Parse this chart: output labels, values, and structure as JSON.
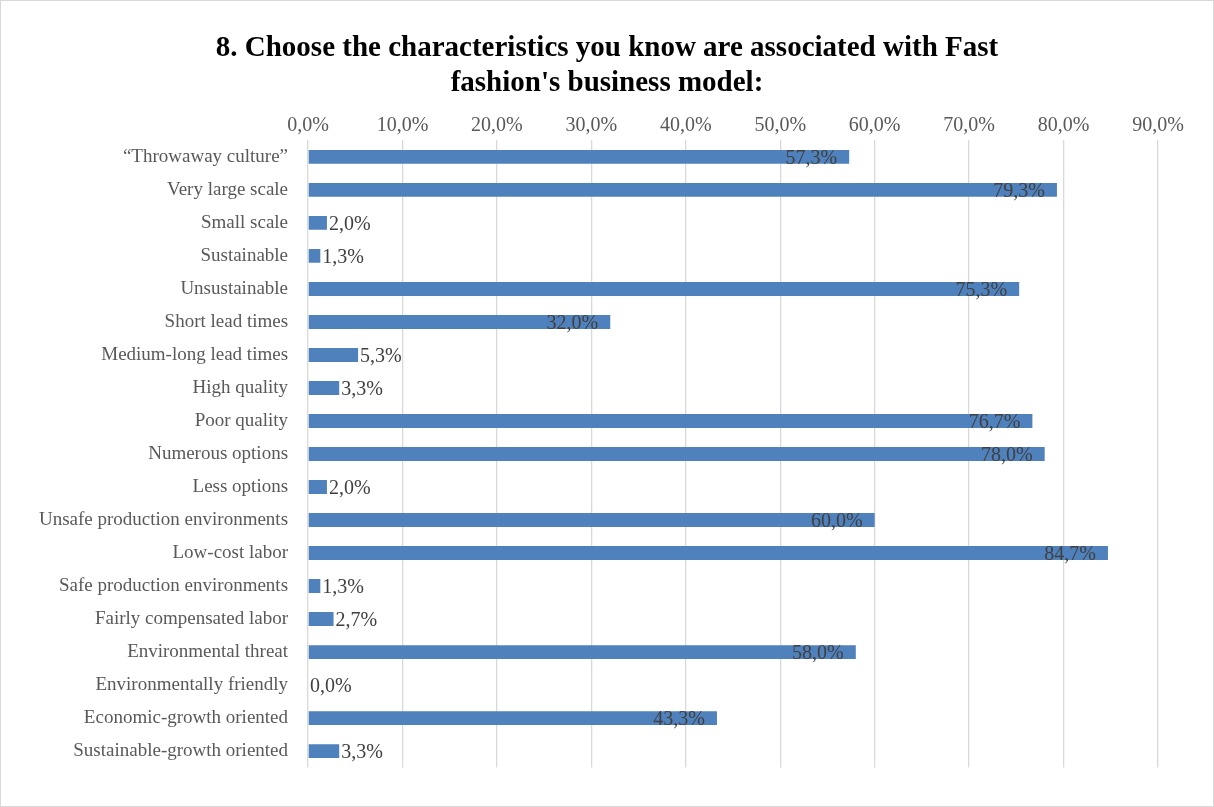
{
  "chart_data": {
    "type": "bar",
    "orientation": "horizontal",
    "title": "8. Choose the characteristics you know are associated with Fast fashion's business model:",
    "categories": [
      "“Throwaway culture”",
      "Very large scale",
      "Small scale",
      "Sustainable",
      "Unsustainable",
      "Short lead times",
      "Medium-long lead times",
      "High quality",
      "Poor quality",
      "Numerous options",
      "Less options",
      "Unsafe production environments",
      "Low-cost labor",
      "Safe production environments",
      "Fairly compensated labor",
      "Environmental threat",
      "Environmentally friendly",
      "Economic-growth oriented",
      "Sustainable-growth oriented"
    ],
    "values": [
      57.3,
      79.3,
      2.0,
      1.3,
      75.3,
      32.0,
      5.3,
      3.3,
      76.7,
      78.0,
      2.0,
      60.0,
      84.7,
      1.3,
      2.7,
      58.0,
      0.0,
      43.3,
      3.3
    ],
    "value_labels": [
      "57,3%",
      "79,3%",
      "2,0%",
      "1,3%",
      "75,3%",
      "32,0%",
      "5,3%",
      "3,3%",
      "76,7%",
      "78,0%",
      "2,0%",
      "60,0%",
      "84,7%",
      "1,3%",
      "2,7%",
      "58,0%",
      "0,0%",
      "43,3%",
      "3,3%"
    ],
    "color": "#4f81bd",
    "xlim": [
      0,
      90
    ],
    "xticks": [
      {
        "value": 0,
        "label": "0,0%"
      },
      {
        "value": 10,
        "label": "10,0%"
      },
      {
        "value": 20,
        "label": "20,0%"
      },
      {
        "value": 30,
        "label": "30,0%"
      },
      {
        "value": 40,
        "label": "40,0%"
      },
      {
        "value": 50,
        "label": "50,0%"
      },
      {
        "value": 60,
        "label": "60,0%"
      },
      {
        "value": 70,
        "label": "70,0%"
      },
      {
        "value": 80,
        "label": "80,0%"
      },
      {
        "value": 90,
        "label": "90,0%"
      }
    ],
    "grid": "x",
    "legend": false
  }
}
